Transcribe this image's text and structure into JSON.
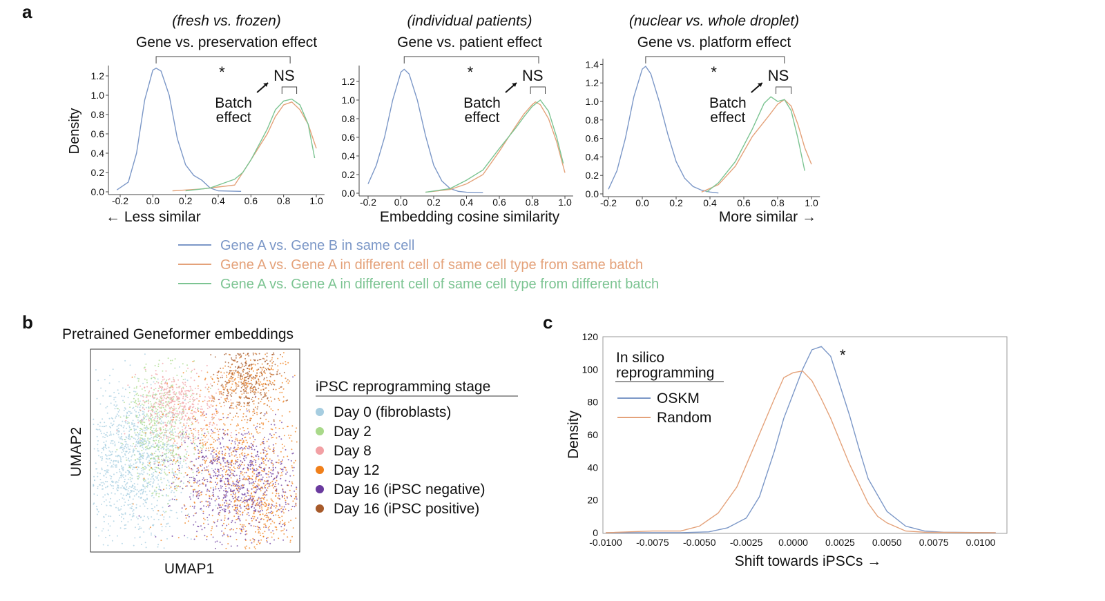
{
  "panel_labels": {
    "a": "a",
    "b": "b",
    "c": "c"
  },
  "colors": {
    "blue": "#7b97c7",
    "orange": "#e4a27a",
    "green": "#7cc492"
  },
  "panel_a": {
    "legend": [
      {
        "label": "Gene A vs. Gene B in same cell",
        "color": "#7b97c7"
      },
      {
        "label": "Gene A vs. Gene A in different cell of same cell type from same batch",
        "color": "#e4a27a"
      },
      {
        "label": "Gene A vs. Gene A in different cell of same cell type from different batch",
        "color": "#7cc492"
      }
    ],
    "ylabel": "Density",
    "xlabel_left": "← Less similar",
    "xlabel_center": "Embedding cosine similarity",
    "xlabel_right": "More similar →",
    "sig_star": "*",
    "ns": "NS",
    "batch_effect_1": "Batch",
    "batch_effect_2": "effect"
  },
  "panel_b": {
    "title": "Pretrained Geneformer embeddings",
    "xlabel": "UMAP1",
    "ylabel": "UMAP2",
    "legend_title": "iPSC reprogramming stage",
    "legend": [
      {
        "label": "Day 0 (fibroblasts)",
        "color": "#a6cde0"
      },
      {
        "label": "Day 2",
        "color": "#a9d98a"
      },
      {
        "label": "Day 8",
        "color": "#f2a0a4"
      },
      {
        "label": "Day 12",
        "color": "#f07f1a"
      },
      {
        "label": "Day 16 (iPSC negative)",
        "color": "#6a3a9e"
      },
      {
        "label": "Day 16 (iPSC positive)",
        "color": "#a75a2a"
      }
    ]
  },
  "chart_data": [
    {
      "type": "line",
      "subtitle": "(fresh vs. frozen)",
      "title": "Gene vs. preservation effect",
      "ylabel": "Density",
      "xticks": [
        "-0.2",
        "0.0",
        "0.2",
        "0.4",
        "0.6",
        "0.8",
        "1.0"
      ],
      "yticks": [
        "0.0",
        "0.2",
        "0.4",
        "0.6",
        "0.8",
        "1.0",
        "1.2"
      ],
      "xlim": [
        -0.22,
        1.02
      ],
      "ylim": [
        0,
        1.3
      ],
      "series": [
        {
          "color": "#7b97c7",
          "x": [
            -0.22,
            -0.15,
            -0.1,
            -0.05,
            0,
            0.02,
            0.05,
            0.1,
            0.15,
            0.2,
            0.25,
            0.3,
            0.35,
            0.4,
            0.54
          ],
          "y": [
            0.02,
            0.1,
            0.4,
            0.95,
            1.26,
            1.28,
            1.25,
            1.0,
            0.55,
            0.28,
            0.17,
            0.12,
            0.04,
            0.01,
            0.005
          ]
        },
        {
          "color": "#e4a27a",
          "x": [
            0.12,
            0.3,
            0.4,
            0.5,
            0.55,
            0.6,
            0.7,
            0.75,
            0.8,
            0.85,
            0.9,
            0.95,
            1.0
          ],
          "y": [
            0.01,
            0.03,
            0.05,
            0.07,
            0.2,
            0.33,
            0.6,
            0.78,
            0.9,
            0.93,
            0.85,
            0.7,
            0.45
          ]
        },
        {
          "color": "#7cc492",
          "x": [
            0.2,
            0.35,
            0.45,
            0.5,
            0.55,
            0.6,
            0.7,
            0.75,
            0.8,
            0.85,
            0.9,
            0.95,
            0.99
          ],
          "y": [
            0.01,
            0.04,
            0.1,
            0.13,
            0.2,
            0.33,
            0.65,
            0.85,
            0.94,
            0.96,
            0.9,
            0.7,
            0.35
          ]
        }
      ]
    },
    {
      "type": "line",
      "subtitle": "(individual patients)",
      "title": "Gene vs. patient effect",
      "xticks": [
        "-0.2",
        "0.0",
        "0.2",
        "0.4",
        "0.6",
        "0.8",
        "1.0"
      ],
      "yticks": [
        "0.0",
        "0.2",
        "0.4",
        "0.6",
        "0.8",
        "1.0",
        "1.2"
      ],
      "xlim": [
        -0.22,
        1.02
      ],
      "ylim": [
        0,
        1.35
      ],
      "series": [
        {
          "color": "#7b97c7",
          "x": [
            -0.2,
            -0.15,
            -0.1,
            -0.05,
            0,
            0.02,
            0.05,
            0.1,
            0.15,
            0.2,
            0.25,
            0.3,
            0.35,
            0.4,
            0.5
          ],
          "y": [
            0.1,
            0.3,
            0.6,
            1.0,
            1.3,
            1.33,
            1.28,
            1.0,
            0.62,
            0.3,
            0.13,
            0.05,
            0.02,
            0.01,
            0.005
          ]
        },
        {
          "color": "#e4a27a",
          "x": [
            0.15,
            0.3,
            0.4,
            0.5,
            0.6,
            0.7,
            0.75,
            0.8,
            0.82,
            0.85,
            0.9,
            0.95,
            1.0
          ],
          "y": [
            0.01,
            0.04,
            0.1,
            0.2,
            0.45,
            0.72,
            0.85,
            0.95,
            0.98,
            0.95,
            0.8,
            0.55,
            0.22
          ]
        },
        {
          "color": "#7cc492",
          "x": [
            0.15,
            0.3,
            0.4,
            0.5,
            0.6,
            0.7,
            0.75,
            0.8,
            0.85,
            0.9,
            0.95,
            0.99
          ],
          "y": [
            0.01,
            0.05,
            0.14,
            0.25,
            0.48,
            0.7,
            0.82,
            0.93,
            1.0,
            0.88,
            0.6,
            0.32
          ]
        }
      ]
    },
    {
      "type": "line",
      "subtitle": "(nuclear vs. whole droplet)",
      "title": "Gene vs. platform effect",
      "xticks": [
        "-0.2",
        "0.0",
        "0.2",
        "0.4",
        "0.6",
        "0.8",
        "1.0"
      ],
      "yticks": [
        "0.0",
        "0.2",
        "0.4",
        "0.6",
        "0.8",
        "1.0",
        "1.2",
        "1.4"
      ],
      "xlim": [
        -0.22,
        1.02
      ],
      "ylim": [
        0,
        1.42
      ],
      "series": [
        {
          "color": "#7b97c7",
          "x": [
            -0.2,
            -0.15,
            -0.1,
            -0.05,
            0,
            0.02,
            0.05,
            0.1,
            0.15,
            0.2,
            0.25,
            0.3,
            0.35,
            0.4,
            0.45
          ],
          "y": [
            0.05,
            0.25,
            0.6,
            1.05,
            1.35,
            1.38,
            1.3,
            1.0,
            0.65,
            0.35,
            0.17,
            0.08,
            0.04,
            0.02,
            0.01
          ]
        },
        {
          "color": "#e4a27a",
          "x": [
            0.35,
            0.45,
            0.55,
            0.65,
            0.75,
            0.8,
            0.84,
            0.88,
            0.92,
            0.96,
            1.0
          ],
          "y": [
            0.02,
            0.1,
            0.3,
            0.62,
            0.85,
            0.97,
            1.02,
            0.95,
            0.75,
            0.5,
            0.32
          ]
        },
        {
          "color": "#7cc492",
          "x": [
            0.38,
            0.45,
            0.55,
            0.65,
            0.72,
            0.76,
            0.8,
            0.84,
            0.88,
            0.92,
            0.96
          ],
          "y": [
            0.02,
            0.12,
            0.35,
            0.7,
            0.98,
            1.05,
            1.0,
            1.02,
            0.9,
            0.6,
            0.25
          ]
        }
      ]
    },
    {
      "type": "line",
      "xlabel": "Shift towards iPSCs →",
      "ylabel": "Density",
      "legend_title_1": "In silico",
      "legend_title_2": "reprogramming",
      "annotation": "*",
      "xticks": [
        "-0.0100",
        "-0.0075",
        "-0.0050",
        "-0.0025",
        "0.0000",
        "0.0025",
        "0.0050",
        "0.0075",
        "0.0100"
      ],
      "yticks": [
        "0",
        "20",
        "40",
        "60",
        "80",
        "100",
        "120"
      ],
      "xlim": [
        -0.01,
        0.0108
      ],
      "ylim": [
        0,
        120
      ],
      "legend_position": "top-left",
      "series": [
        {
          "name": "OSKM",
          "color": "#7b97c7",
          "x": [
            -0.01,
            -0.006,
            -0.0045,
            -0.0035,
            -0.0025,
            -0.0018,
            -0.001,
            -0.0005,
            0,
            0.0005,
            0.001,
            0.0015,
            0.002,
            0.0025,
            0.003,
            0.0035,
            0.004,
            0.005,
            0.006,
            0.007,
            0.008,
            0.0108
          ],
          "y": [
            0,
            0,
            0.5,
            3,
            9,
            22,
            50,
            70,
            85,
            100,
            112,
            114,
            108,
            90,
            72,
            52,
            33,
            13,
            4,
            1,
            0.3,
            0
          ]
        },
        {
          "name": "Random",
          "color": "#e4a27a",
          "x": [
            -0.01,
            -0.0075,
            -0.006,
            -0.005,
            -0.004,
            -0.003,
            -0.002,
            -0.001,
            -0.0005,
            0,
            0.0005,
            0.001,
            0.0015,
            0.002,
            0.003,
            0.004,
            0.0045,
            0.005,
            0.006,
            0.007,
            0.0108
          ],
          "y": [
            0,
            1,
            1,
            4,
            12,
            28,
            55,
            82,
            95,
            98,
            99,
            93,
            82,
            70,
            42,
            18,
            10,
            6,
            1,
            0.3,
            0
          ]
        }
      ]
    }
  ]
}
